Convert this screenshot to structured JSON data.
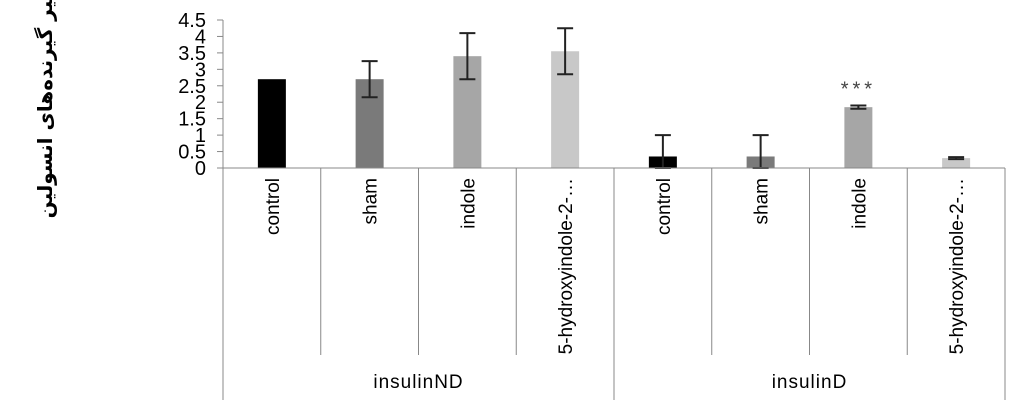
{
  "chart_data": {
    "type": "bar",
    "title": "",
    "ylabel": "تاثیر گیرنده‌های انسولین",
    "xlabel": "",
    "ylim": [
      0,
      4.5
    ],
    "yticks": [
      "0",
      "0.5",
      "1",
      "1.5",
      "2",
      "2.5",
      "3",
      "3.5",
      "4",
      "4.5"
    ],
    "groups": [
      {
        "name": "insulinND",
        "categories": [
          "control",
          "sham",
          "indole",
          "5-hydroxyindole-2-…"
        ],
        "values": [
          2.7,
          2.7,
          3.4,
          3.55
        ],
        "errors": [
          0,
          0.55,
          0.7,
          0.7
        ],
        "colors": [
          "#000000",
          "#7a7a7a",
          "#a6a6a6",
          "#c8c8c8"
        ]
      },
      {
        "name": "insulinD",
        "categories": [
          "control",
          "sham",
          "indole",
          "5-hydroxyindole-2-…"
        ],
        "values": [
          0.35,
          0.35,
          1.85,
          0.3
        ],
        "errors": [
          0.65,
          0.65,
          0.05,
          0.03
        ],
        "colors": [
          "#000000",
          "#7a7a7a",
          "#a6a6a6",
          "#c8c8c8"
        ]
      }
    ],
    "annotations": [
      {
        "group": 1,
        "category": 2,
        "text": "***"
      }
    ],
    "grid": false,
    "legend": "none"
  }
}
